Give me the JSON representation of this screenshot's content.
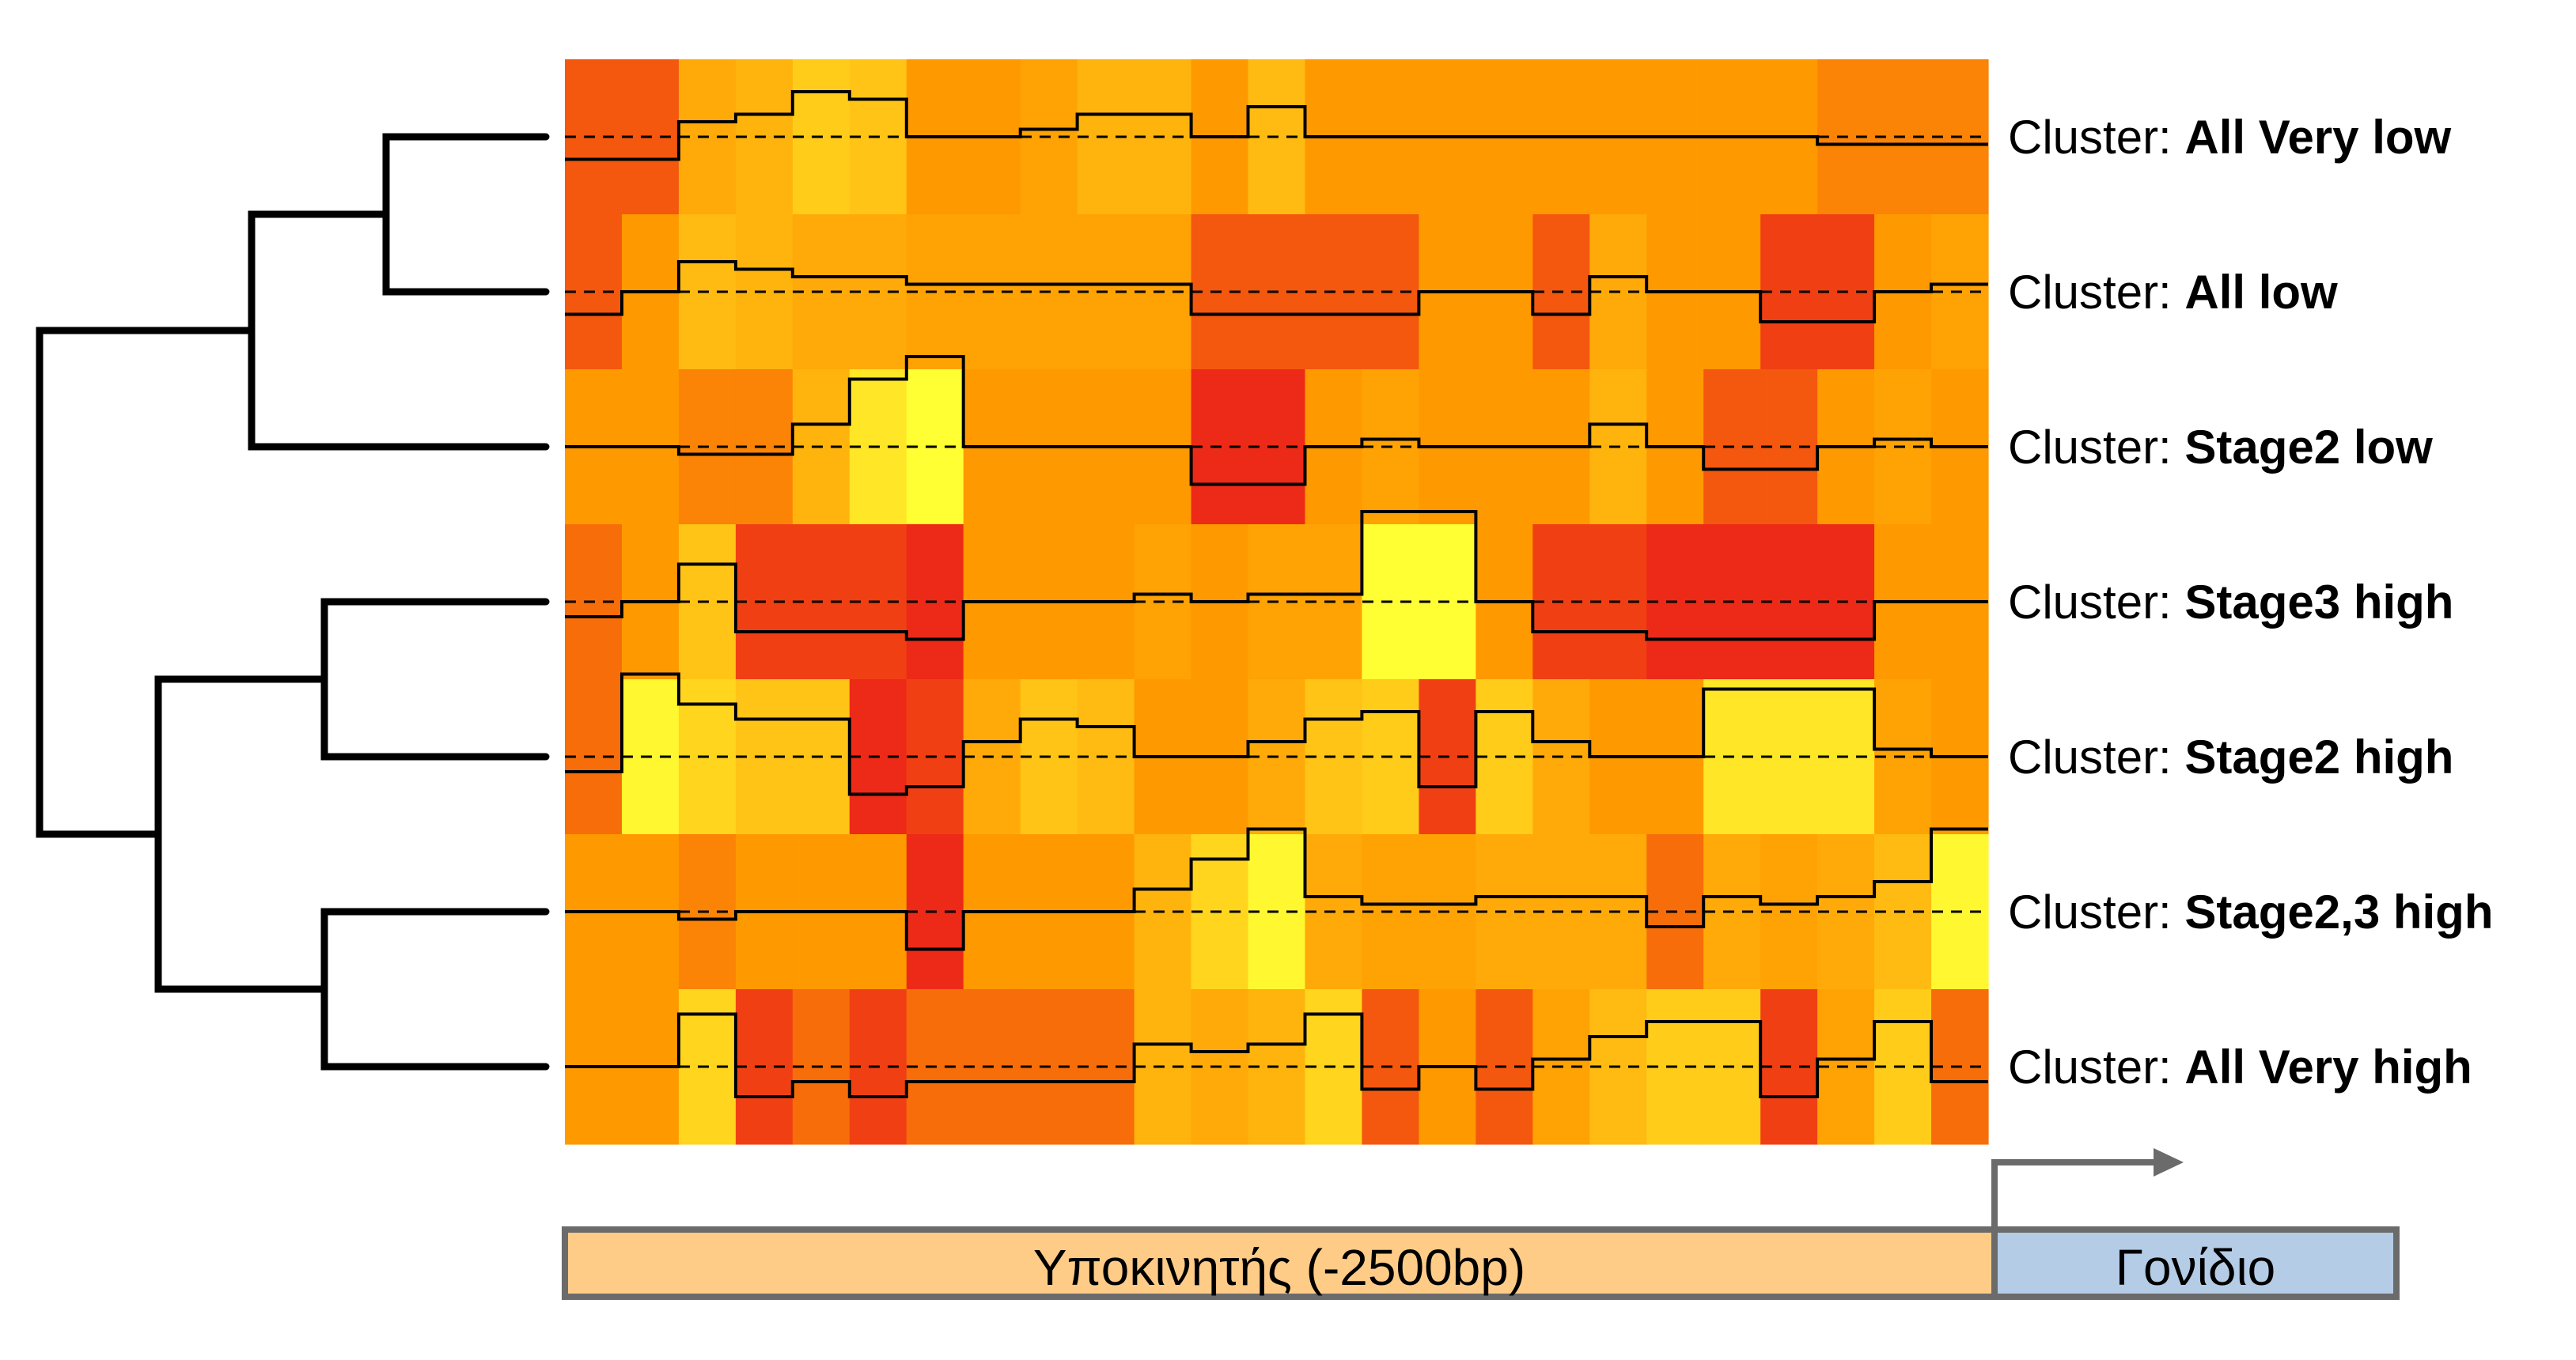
{
  "chart_data": {
    "type": "heatmap",
    "label_prefix": "Cluster: ",
    "clusters": [
      {
        "name": "All Very low",
        "values": [
          0.15,
          0.15,
          0.4,
          0.45,
          0.6,
          0.55,
          0.3,
          0.3,
          0.35,
          0.45,
          0.45,
          0.3,
          0.5,
          0.3,
          0.3,
          0.3,
          0.3,
          0.3,
          0.3,
          0.3,
          0.3,
          0.3,
          0.25,
          0.25,
          0.25
        ]
      },
      {
        "name": "All low",
        "values": [
          0.15,
          0.3,
          0.5,
          0.45,
          0.4,
          0.4,
          0.35,
          0.35,
          0.35,
          0.35,
          0.35,
          0.15,
          0.15,
          0.15,
          0.15,
          0.3,
          0.3,
          0.15,
          0.4,
          0.3,
          0.3,
          0.1,
          0.1,
          0.3,
          0.35
        ]
      },
      {
        "name": "Stage2 low",
        "values": [
          0.3,
          0.3,
          0.25,
          0.25,
          0.45,
          0.75,
          0.9,
          0.3,
          0.3,
          0.3,
          0.3,
          0.05,
          0.05,
          0.3,
          0.35,
          0.3,
          0.3,
          0.3,
          0.45,
          0.3,
          0.15,
          0.15,
          0.3,
          0.35,
          0.3
        ]
      },
      {
        "name": "Stage3 high",
        "values": [
          0.2,
          0.3,
          0.55,
          0.1,
          0.1,
          0.1,
          0.05,
          0.3,
          0.3,
          0.3,
          0.35,
          0.3,
          0.35,
          0.35,
          0.9,
          0.9,
          0.3,
          0.1,
          0.1,
          0.05,
          0.05,
          0.05,
          0.05,
          0.3,
          0.3
        ]
      },
      {
        "name": "Stage2 high",
        "values": [
          0.2,
          0.85,
          0.65,
          0.55,
          0.55,
          0.05,
          0.1,
          0.4,
          0.55,
          0.5,
          0.3,
          0.3,
          0.4,
          0.55,
          0.6,
          0.1,
          0.6,
          0.4,
          0.3,
          0.3,
          0.75,
          0.75,
          0.75,
          0.35,
          0.3
        ]
      },
      {
        "name": "Stage2,3 high",
        "values": [
          0.3,
          0.3,
          0.25,
          0.3,
          0.3,
          0.3,
          0.05,
          0.3,
          0.3,
          0.3,
          0.45,
          0.65,
          0.85,
          0.4,
          0.35,
          0.35,
          0.4,
          0.4,
          0.4,
          0.2,
          0.4,
          0.35,
          0.4,
          0.5,
          0.85
        ]
      },
      {
        "name": "All Very high",
        "values": [
          0.3,
          0.3,
          0.65,
          0.1,
          0.2,
          0.1,
          0.2,
          0.2,
          0.2,
          0.2,
          0.45,
          0.4,
          0.45,
          0.65,
          0.15,
          0.3,
          0.15,
          0.35,
          0.5,
          0.6,
          0.6,
          0.1,
          0.35,
          0.6,
          0.2
        ]
      }
    ],
    "color_scale": {
      "low": "#E8141C",
      "mid": "#FF9900",
      "high": "#FFFF33"
    },
    "dendrogram": {
      "merges": [
        [
          0,
          1
        ],
        [
          7,
          2
        ],
        [
          3,
          4
        ],
        [
          5,
          6
        ],
        [
          9,
          10
        ],
        [
          8,
          11
        ]
      ]
    }
  },
  "promoter_label": "Υποκινητής (-2500bp)",
  "gene_label": "Γονίδιο",
  "colors": {
    "promoter_box": "#FFCC88",
    "gene_box": "#B4CCE6",
    "box_border": "#6B6B6B",
    "arrow": "#6B6B6B",
    "line": "#000000"
  }
}
